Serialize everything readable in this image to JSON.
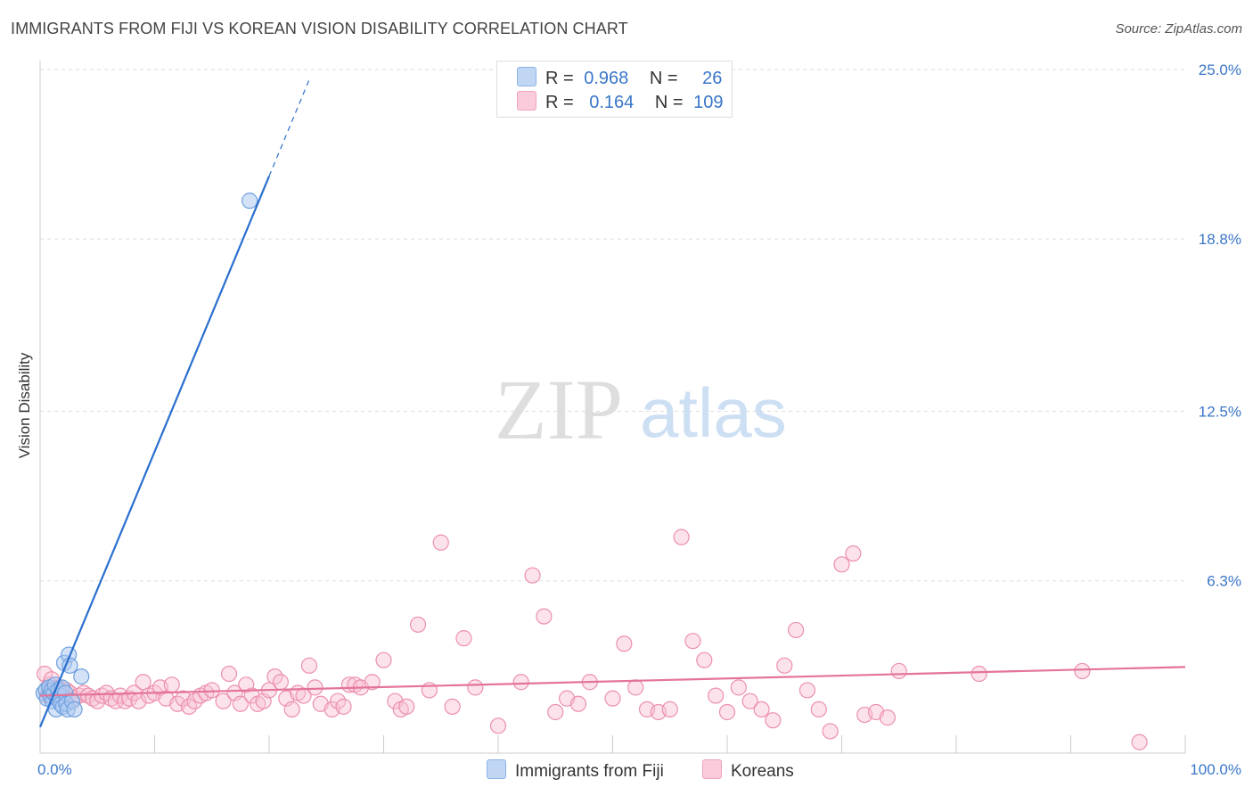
{
  "title": "IMMIGRANTS FROM FIJI VS KOREAN VISION DISABILITY CORRELATION CHART",
  "source": "Source: ZipAtlas.com",
  "watermark": {
    "zip": "ZIP",
    "atlas": "atlas"
  },
  "legend": {
    "r_label": "R =",
    "n_label": "N =",
    "series": [
      {
        "r": "0.968",
        "n": "26"
      },
      {
        "r": "0.164",
        "n": "109"
      }
    ]
  },
  "chart_data": {
    "type": "scatter",
    "title": "IMMIGRANTS FROM FIJI VS KOREAN VISION DISABILITY CORRELATION CHART",
    "xlabel": "",
    "ylabel": "Vision Disability",
    "xlim": [
      0,
      100
    ],
    "ylim": [
      0,
      25
    ],
    "x_tick_labels": [
      "0.0%",
      "100.0%"
    ],
    "y_ticks": [
      6.3,
      12.5,
      18.8,
      25.0
    ],
    "y_tick_labels": [
      "6.3%",
      "12.5%",
      "18.8%",
      "25.0%"
    ],
    "grid": true,
    "colors": {
      "fiji": "#aecbf0",
      "fiji_edge": "#6fa0de",
      "fiji_line": "#2a6fce",
      "koreans": "#f8c0d2",
      "koreans_edge": "#ec8fae",
      "koreans_line": "#e4739a"
    },
    "series": [
      {
        "name": "Immigrants from Fiji",
        "r": 0.968,
        "n": 26,
        "points": [
          [
            0.3,
            2.2
          ],
          [
            0.5,
            2.3
          ],
          [
            0.6,
            2.0
          ],
          [
            0.8,
            2.4
          ],
          [
            0.9,
            2.1
          ],
          [
            1.0,
            2.3
          ],
          [
            1.1,
            1.9
          ],
          [
            1.2,
            2.2
          ],
          [
            1.3,
            2.5
          ],
          [
            1.4,
            1.6
          ],
          [
            1.5,
            2.0
          ],
          [
            1.6,
            2.3
          ],
          [
            1.7,
            2.1
          ],
          [
            1.8,
            1.8
          ],
          [
            1.9,
            2.4
          ],
          [
            2.0,
            1.7
          ],
          [
            2.1,
            3.3
          ],
          [
            2.2,
            2.2
          ],
          [
            2.3,
            1.8
          ],
          [
            2.4,
            1.6
          ],
          [
            2.5,
            3.6
          ],
          [
            2.6,
            3.2
          ],
          [
            2.8,
            1.9
          ],
          [
            3.0,
            1.6
          ],
          [
            3.6,
            2.8
          ],
          [
            18.3,
            20.2
          ]
        ],
        "trend": {
          "x0": 0,
          "y0": 0.95,
          "x1": 20,
          "y1": 21.1,
          "dash_to_x": 23.5
        }
      },
      {
        "name": "Koreans",
        "r": 0.164,
        "n": 109,
        "points": [
          [
            0.4,
            2.9
          ],
          [
            0.6,
            2.1
          ],
          [
            0.8,
            2.5
          ],
          [
            1.0,
            2.7
          ],
          [
            1.2,
            2.3
          ],
          [
            1.4,
            2.0
          ],
          [
            1.6,
            2.4
          ],
          [
            1.8,
            2.2
          ],
          [
            2.0,
            2.1
          ],
          [
            2.3,
            2.3
          ],
          [
            2.6,
            2.2
          ],
          [
            3.0,
            2.0
          ],
          [
            3.4,
            2.1
          ],
          [
            3.8,
            2.2
          ],
          [
            4.2,
            2.1
          ],
          [
            4.6,
            2.0
          ],
          [
            5.0,
            1.9
          ],
          [
            5.4,
            2.1
          ],
          [
            5.8,
            2.2
          ],
          [
            6.2,
            2.0
          ],
          [
            6.6,
            1.9
          ],
          [
            7.0,
            2.1
          ],
          [
            7.4,
            1.9
          ],
          [
            7.8,
            2.0
          ],
          [
            8.2,
            2.2
          ],
          [
            8.6,
            1.9
          ],
          [
            9.0,
            2.6
          ],
          [
            9.5,
            2.1
          ],
          [
            10.0,
            2.2
          ],
          [
            10.5,
            2.4
          ],
          [
            11.0,
            2.0
          ],
          [
            11.5,
            2.5
          ],
          [
            12.0,
            1.8
          ],
          [
            12.5,
            2.0
          ],
          [
            13.0,
            1.7
          ],
          [
            13.5,
            1.9
          ],
          [
            14.0,
            2.1
          ],
          [
            14.5,
            2.2
          ],
          [
            15.0,
            2.3
          ],
          [
            16.0,
            1.9
          ],
          [
            16.5,
            2.9
          ],
          [
            17.0,
            2.2
          ],
          [
            17.5,
            1.8
          ],
          [
            18.0,
            2.5
          ],
          [
            18.5,
            2.1
          ],
          [
            19.0,
            1.8
          ],
          [
            19.5,
            1.9
          ],
          [
            20.0,
            2.3
          ],
          [
            20.5,
            2.8
          ],
          [
            21.0,
            2.6
          ],
          [
            21.5,
            2.0
          ],
          [
            22.0,
            1.6
          ],
          [
            22.5,
            2.2
          ],
          [
            23.0,
            2.1
          ],
          [
            23.5,
            3.2
          ],
          [
            24.0,
            2.4
          ],
          [
            24.5,
            1.8
          ],
          [
            25.5,
            1.6
          ],
          [
            26.0,
            1.9
          ],
          [
            26.5,
            1.7
          ],
          [
            27.0,
            2.5
          ],
          [
            27.5,
            2.5
          ],
          [
            28.0,
            2.4
          ],
          [
            29.0,
            2.6
          ],
          [
            30.0,
            3.4
          ],
          [
            31.0,
            1.9
          ],
          [
            31.5,
            1.6
          ],
          [
            32.0,
            1.7
          ],
          [
            33.0,
            4.7
          ],
          [
            34.0,
            2.3
          ],
          [
            35.0,
            7.7
          ],
          [
            36.0,
            1.7
          ],
          [
            37.0,
            4.2
          ],
          [
            38.0,
            2.4
          ],
          [
            40.0,
            1.0
          ],
          [
            42.0,
            2.6
          ],
          [
            43.0,
            6.5
          ],
          [
            44.0,
            5.0
          ],
          [
            45.0,
            1.5
          ],
          [
            46.0,
            2.0
          ],
          [
            47.0,
            1.8
          ],
          [
            48.0,
            2.6
          ],
          [
            50.0,
            2.0
          ],
          [
            51.0,
            4.0
          ],
          [
            52.0,
            2.4
          ],
          [
            53.0,
            1.6
          ],
          [
            54.0,
            1.5
          ],
          [
            55.0,
            1.6
          ],
          [
            56.0,
            7.9
          ],
          [
            57.0,
            4.1
          ],
          [
            58.0,
            3.4
          ],
          [
            59.0,
            2.1
          ],
          [
            60.0,
            1.5
          ],
          [
            61.0,
            2.4
          ],
          [
            62.0,
            1.9
          ],
          [
            63.0,
            1.6
          ],
          [
            64.0,
            1.2
          ],
          [
            65.0,
            3.2
          ],
          [
            66.0,
            4.5
          ],
          [
            67.0,
            2.3
          ],
          [
            68.0,
            1.6
          ],
          [
            69.0,
            0.8
          ],
          [
            70.0,
            6.9
          ],
          [
            71.0,
            7.3
          ],
          [
            72.0,
            1.4
          ],
          [
            73.0,
            1.5
          ],
          [
            74.0,
            1.3
          ],
          [
            75.0,
            3.0
          ],
          [
            82.0,
            2.9
          ],
          [
            91.0,
            3.0
          ],
          [
            96.0,
            0.4
          ]
        ],
        "trend": {
          "x0": 0,
          "y0": 2.1,
          "x1": 100,
          "y1": 3.15
        }
      }
    ]
  },
  "bottom_legend": [
    "Immigrants from Fiji",
    "Koreans"
  ]
}
